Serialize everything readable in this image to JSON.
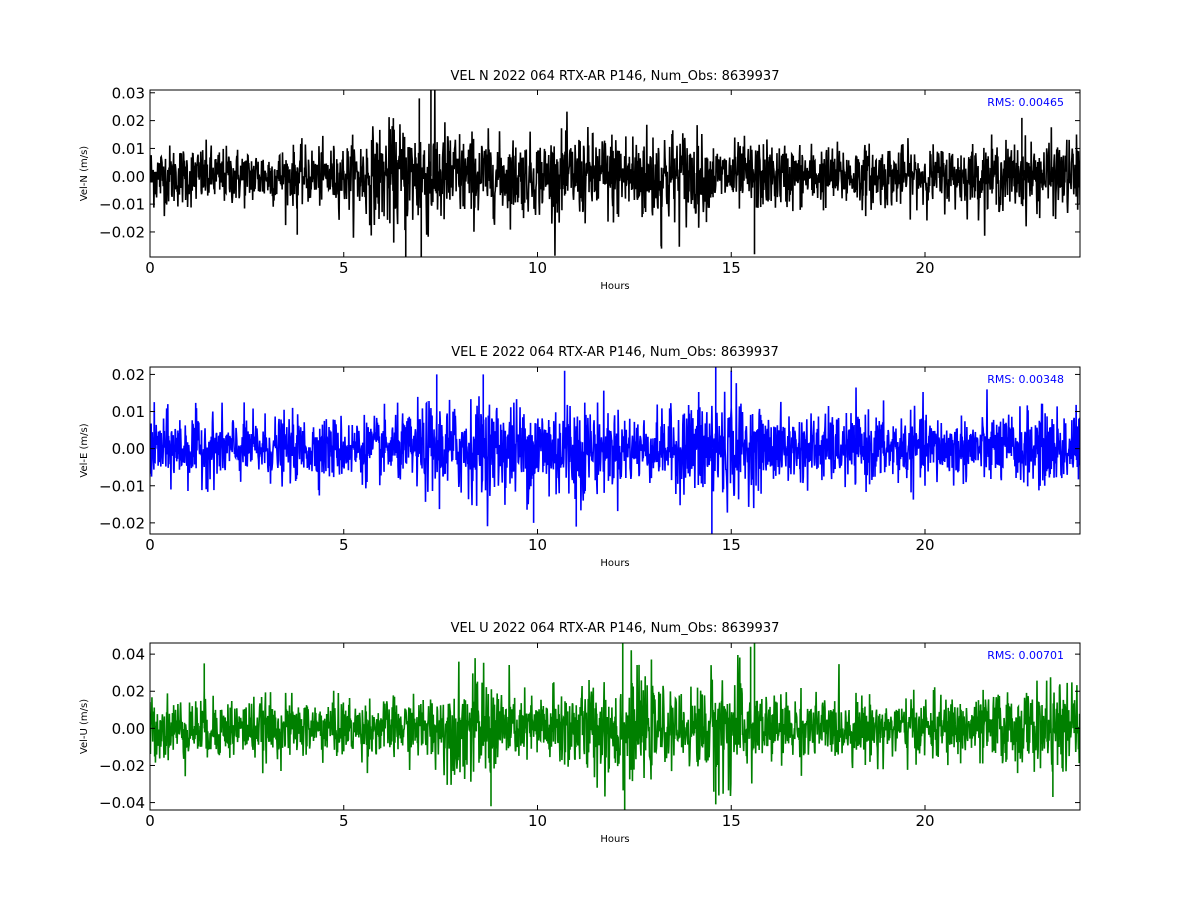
{
  "chart_data": [
    {
      "type": "line",
      "title": "VEL N 2022 064 RTX-AR  P146, Num_Obs: 8639937",
      "xlabel": "Hours",
      "ylabel": "Vel-N (m/s)",
      "annotation": "RMS:  0.00465",
      "annotation_color": "#0000ff",
      "color": "#000000",
      "xlim": [
        0,
        24
      ],
      "ylim": [
        -0.029,
        0.031
      ],
      "xticks": [
        0,
        5,
        10,
        15,
        20
      ],
      "xtick_labels": [
        "0",
        "5",
        "10",
        "15",
        "20"
      ],
      "yticks": [
        -0.02,
        -0.01,
        0.0,
        0.01,
        0.02,
        0.03
      ],
      "ytick_labels": [
        "−0.02",
        "−0.01",
        "0.00",
        "0.01",
        "0.02",
        "0.03"
      ],
      "rms": 0.00465,
      "envelope": {
        "x": [
          0,
          1,
          2,
          3,
          4,
          5,
          5.5,
          6,
          6.5,
          7,
          7.3,
          7.6,
          8,
          9,
          10,
          11,
          11.5,
          12,
          12.5,
          13,
          13.5,
          14,
          14.5,
          15,
          15.5,
          16,
          17,
          18,
          19,
          20,
          21,
          22,
          23,
          24
        ],
        "amp": [
          0.013,
          0.013,
          0.012,
          0.012,
          0.012,
          0.013,
          0.018,
          0.021,
          0.023,
          0.024,
          0.025,
          0.022,
          0.019,
          0.016,
          0.016,
          0.018,
          0.018,
          0.019,
          0.02,
          0.021,
          0.021,
          0.02,
          0.013,
          0.014,
          0.015,
          0.014,
          0.013,
          0.013,
          0.013,
          0.012,
          0.013,
          0.014,
          0.015,
          0.016
        ]
      },
      "peaks": [
        {
          "x": 6.6,
          "y": -0.029
        },
        {
          "x": 7.0,
          "y": -0.029
        },
        {
          "x": 7.25,
          "y": 0.031
        },
        {
          "x": 6.95,
          "y": 0.028
        },
        {
          "x": 15.6,
          "y": -0.028
        },
        {
          "x": 13.2,
          "y": -0.026
        },
        {
          "x": 3.8,
          "y": -0.021
        },
        {
          "x": 22.5,
          "y": 0.021
        }
      ]
    },
    {
      "type": "line",
      "title": "VEL E 2022 064 RTX-AR  P146, Num_Obs: 8639937",
      "xlabel": "Hours",
      "ylabel": "Vel-E (m/s)",
      "annotation": "RMS:  0.00348",
      "annotation_color": "#0000ff",
      "color": "#0000ff",
      "xlim": [
        0,
        24
      ],
      "ylim": [
        -0.023,
        0.022
      ],
      "xticks": [
        0,
        5,
        10,
        15,
        20
      ],
      "xtick_labels": [
        "0",
        "5",
        "10",
        "15",
        "20"
      ],
      "yticks": [
        -0.02,
        -0.01,
        0.0,
        0.01,
        0.02
      ],
      "ytick_labels": [
        "−0.02",
        "−0.01",
        "0.00",
        "0.01",
        "0.02"
      ],
      "rms": 0.00348,
      "envelope": {
        "x": [
          0,
          1,
          2,
          3,
          4,
          5,
          6,
          6.7,
          7.2,
          8,
          9,
          10,
          10.5,
          11,
          12,
          13,
          13.5,
          14,
          14.5,
          15,
          15.5,
          16,
          17,
          18,
          19,
          20,
          21,
          22,
          23,
          24
        ],
        "amp": [
          0.011,
          0.011,
          0.01,
          0.01,
          0.01,
          0.01,
          0.01,
          0.011,
          0.015,
          0.015,
          0.015,
          0.015,
          0.017,
          0.016,
          0.012,
          0.01,
          0.012,
          0.016,
          0.018,
          0.017,
          0.013,
          0.011,
          0.011,
          0.011,
          0.011,
          0.011,
          0.01,
          0.011,
          0.012,
          0.013
        ]
      },
      "peaks": [
        {
          "x": 14.5,
          "y": -0.023
        },
        {
          "x": 14.6,
          "y": 0.022
        },
        {
          "x": 10.7,
          "y": 0.021
        },
        {
          "x": 15.0,
          "y": 0.021
        },
        {
          "x": 11.0,
          "y": -0.021
        },
        {
          "x": 7.4,
          "y": 0.02
        },
        {
          "x": 8.6,
          "y": 0.02
        },
        {
          "x": 9.9,
          "y": -0.02
        }
      ]
    },
    {
      "type": "line",
      "title": "VEL U 2022 064 RTX-AR  P146, Num_Obs: 8639937",
      "xlabel": "Hours",
      "ylabel": "Vel-U (m/s)",
      "annotation": "RMS:  0.00701",
      "annotation_color": "#0000ff",
      "color": "#008000",
      "xlim": [
        0,
        24
      ],
      "ylim": [
        -0.044,
        0.046
      ],
      "xticks": [
        0,
        5,
        10,
        15,
        20
      ],
      "xtick_labels": [
        "0",
        "5",
        "10",
        "15",
        "20"
      ],
      "yticks": [
        -0.04,
        -0.02,
        0.0,
        0.02,
        0.04
      ],
      "ytick_labels": [
        "−0.04",
        "−0.02",
        "0.00",
        "0.02",
        "0.04"
      ],
      "rms": 0.00701,
      "envelope": {
        "x": [
          0,
          1,
          2,
          3,
          4,
          5,
          6,
          7,
          7.5,
          8,
          8.5,
          9,
          9.5,
          10,
          10.5,
          11,
          11.5,
          12,
          12.3,
          13,
          13.5,
          14,
          14.5,
          15,
          15.5,
          16,
          17,
          18,
          19,
          20,
          21,
          22,
          23,
          24
        ],
        "amp": [
          0.02,
          0.02,
          0.019,
          0.019,
          0.018,
          0.019,
          0.018,
          0.019,
          0.024,
          0.032,
          0.035,
          0.03,
          0.02,
          0.021,
          0.027,
          0.027,
          0.03,
          0.034,
          0.035,
          0.027,
          0.019,
          0.024,
          0.035,
          0.036,
          0.03,
          0.021,
          0.02,
          0.019,
          0.019,
          0.019,
          0.02,
          0.023,
          0.025,
          0.027
        ]
      },
      "peaks": [
        {
          "x": 12.2,
          "y": 0.046
        },
        {
          "x": 12.25,
          "y": -0.044
        },
        {
          "x": 15.6,
          "y": 0.046
        },
        {
          "x": 15.5,
          "y": 0.044
        },
        {
          "x": 8.8,
          "y": -0.042
        },
        {
          "x": 14.6,
          "y": -0.041
        },
        {
          "x": 1.4,
          "y": 0.035
        },
        {
          "x": 23.3,
          "y": -0.037
        }
      ]
    }
  ]
}
